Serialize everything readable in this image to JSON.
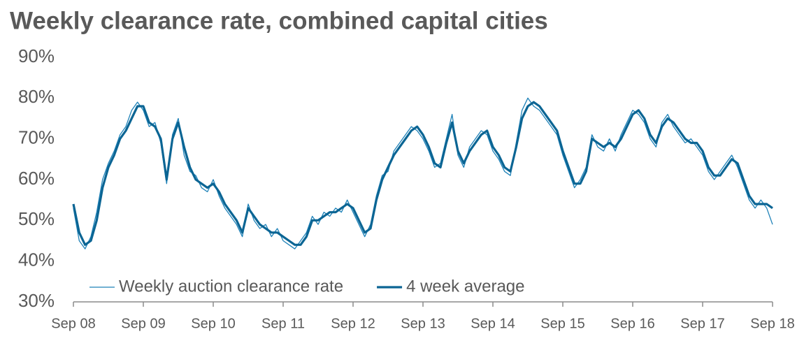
{
  "chart_data": {
    "type": "line",
    "title": "Weekly clearance rate, combined capital cities",
    "categories": [
      "Sep 08",
      null,
      null,
      null,
      null,
      null,
      null,
      null,
      null,
      null,
      null,
      null,
      "Sep 09",
      null,
      null,
      null,
      null,
      null,
      null,
      null,
      null,
      null,
      null,
      null,
      "Sep 10",
      null,
      null,
      null,
      null,
      null,
      null,
      null,
      null,
      null,
      null,
      null,
      "Sep 11",
      null,
      null,
      null,
      null,
      null,
      null,
      null,
      null,
      null,
      null,
      null,
      "Sep 12",
      null,
      null,
      null,
      null,
      null,
      null,
      null,
      null,
      null,
      null,
      null,
      "Sep 13",
      null,
      null,
      null,
      null,
      null,
      null,
      null,
      null,
      null,
      null,
      null,
      "Sep 14",
      null,
      null,
      null,
      null,
      null,
      null,
      null,
      null,
      null,
      null,
      null,
      "Sep 15",
      null,
      null,
      null,
      null,
      null,
      null,
      null,
      null,
      null,
      null,
      null,
      "Sep 16",
      null,
      null,
      null,
      null,
      null,
      null,
      null,
      null,
      null,
      null,
      null,
      "Sep 17",
      null,
      null,
      null,
      null,
      null,
      null,
      null,
      null,
      null,
      null,
      null,
      "Sep 18"
    ],
    "series": [
      {
        "name": "Weekly auction clearance rate",
        "color": "#1f82b8",
        "width": 1.3,
        "values": [
          53,
          45,
          43,
          46,
          52,
          60,
          64,
          67,
          71,
          73,
          77,
          79,
          77,
          73,
          74,
          69,
          59,
          71,
          75,
          66,
          62,
          61,
          58,
          57,
          60,
          56,
          53,
          51,
          49,
          46,
          54,
          50,
          48,
          49,
          46,
          48,
          45,
          44,
          43,
          45,
          47,
          51,
          49,
          52,
          51,
          53,
          52,
          55,
          52,
          49,
          46,
          49,
          56,
          61,
          62,
          67,
          69,
          71,
          73,
          72,
          70,
          67,
          63,
          64,
          70,
          76,
          66,
          63,
          68,
          70,
          72,
          71,
          67,
          65,
          62,
          61,
          69,
          77,
          80,
          78,
          77,
          75,
          73,
          71,
          66,
          62,
          58,
          60,
          63,
          71,
          68,
          67,
          70,
          67,
          71,
          74,
          77,
          76,
          74,
          70,
          68,
          74,
          76,
          73,
          71,
          69,
          70,
          68,
          66,
          62,
          60,
          62,
          64,
          66,
          63,
          59,
          55,
          53,
          55,
          53,
          49
        ]
      },
      {
        "name": "4 week average",
        "color": "#0b6594",
        "width": 3.2,
        "values": [
          54,
          47,
          44,
          45,
          50,
          58,
          63,
          66,
          70,
          72,
          75,
          78,
          78,
          74,
          73,
          70,
          60,
          70,
          74,
          68,
          63,
          60,
          59,
          58,
          59,
          57,
          54,
          52,
          50,
          47,
          53,
          51,
          49,
          48,
          47,
          47,
          46,
          45,
          44,
          44,
          46,
          50,
          50,
          51,
          52,
          52,
          53,
          54,
          53,
          50,
          47,
          48,
          55,
          60,
          63,
          66,
          68,
          70,
          72,
          73,
          71,
          68,
          64,
          63,
          69,
          74,
          67,
          64,
          67,
          69,
          71,
          72,
          68,
          66,
          63,
          62,
          68,
          75,
          78,
          79,
          78,
          76,
          74,
          72,
          67,
          63,
          59,
          59,
          62,
          70,
          69,
          68,
          69,
          68,
          70,
          73,
          76,
          77,
          75,
          71,
          69,
          73,
          75,
          74,
          72,
          70,
          69,
          69,
          67,
          63,
          61,
          61,
          63,
          65,
          64,
          60,
          56,
          54,
          54,
          54,
          53
        ]
      }
    ],
    "ylim": [
      30,
      90
    ],
    "yticks": [
      {
        "value": 30,
        "label": "30%"
      },
      {
        "value": 40,
        "label": "40%"
      },
      {
        "value": 50,
        "label": "50%"
      },
      {
        "value": 60,
        "label": "60%"
      },
      {
        "value": 70,
        "label": "70%"
      },
      {
        "value": 80,
        "label": "80%"
      },
      {
        "value": 90,
        "label": "90%"
      }
    ],
    "legend": "lower left",
    "grid": false
  }
}
